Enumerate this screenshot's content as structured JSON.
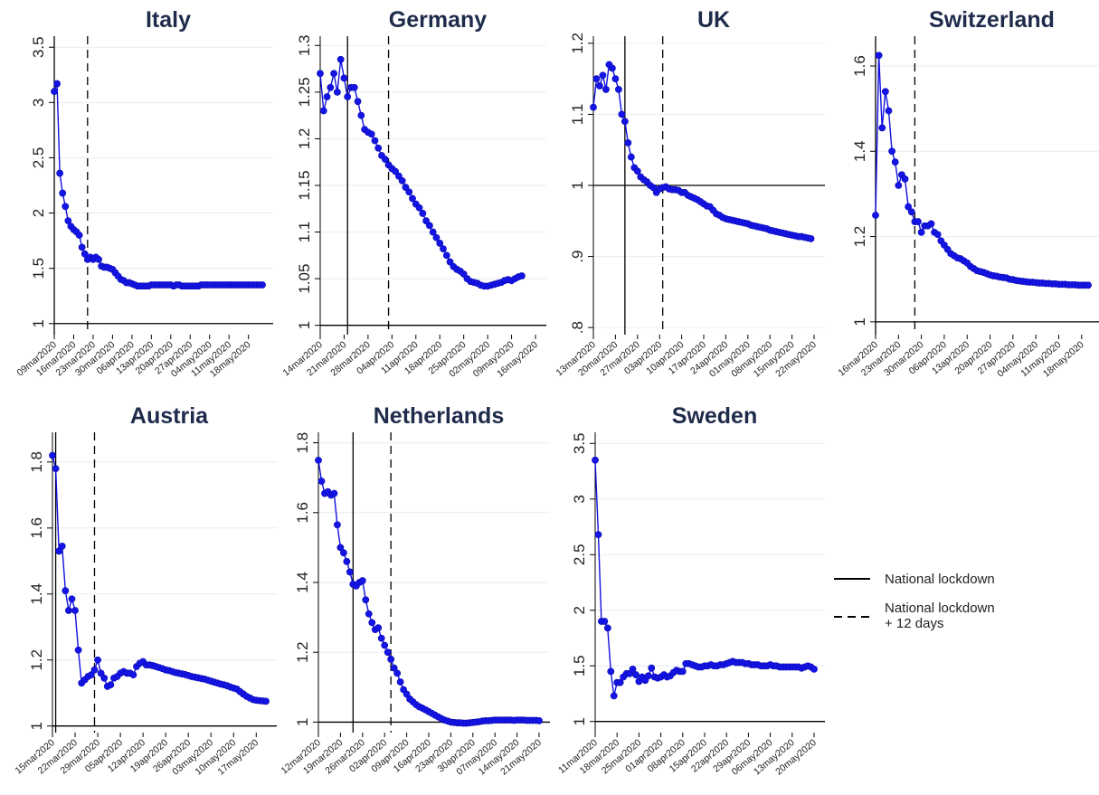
{
  "legend": {
    "lockdown_label": "National lockdown",
    "lockdown12_line1": "National lockdown",
    "lockdown12_line2": "+ 12 days"
  },
  "chart_data": [
    {
      "type": "line",
      "title": "Italy",
      "ylim": [
        0.9,
        3.6
      ],
      "yticks": [
        "1",
        "1.5",
        "2",
        "2.5",
        "3",
        "3.5"
      ],
      "xticks": [
        "09mar2020",
        "16mar2020",
        "23mar2020",
        "30mar2020",
        "06apr2020",
        "13apr2020",
        "20apr2020",
        "27apr2020",
        "04may2020",
        "11may2020",
        "18may2020"
      ],
      "x_first": "09mar2020",
      "lockdown_date": "09mar2020",
      "lockdown_plus12_date": "21mar2020",
      "reference_line": 1,
      "values": [
        3.1,
        3.17,
        2.36,
        2.18,
        2.06,
        1.93,
        1.88,
        1.85,
        1.83,
        1.8,
        1.69,
        1.63,
        1.58,
        1.6,
        1.58,
        1.6,
        1.58,
        1.52,
        1.51,
        1.51,
        1.5,
        1.49,
        1.46,
        1.43,
        1.4,
        1.39,
        1.37,
        1.37,
        1.36,
        1.35,
        1.34,
        1.34,
        1.34,
        1.34,
        1.34,
        1.35,
        1.35,
        1.35,
        1.35,
        1.35,
        1.35,
        1.35,
        1.35,
        1.34,
        1.35,
        1.35,
        1.34,
        1.34,
        1.34,
        1.34,
        1.34,
        1.34,
        1.34,
        1.35,
        1.35,
        1.35,
        1.35,
        1.35,
        1.35,
        1.35,
        1.35,
        1.35,
        1.35,
        1.35,
        1.35,
        1.35,
        1.35,
        1.35,
        1.35,
        1.35,
        1.35,
        1.35,
        1.35,
        1.35,
        1.35,
        1.35
      ]
    },
    {
      "type": "line",
      "title": "Germany",
      "ylim": [
        0.99,
        1.31
      ],
      "yticks": [
        "1",
        "1.05",
        "1.1",
        "1.15",
        "1.2",
        "1.25",
        "1.3"
      ],
      "xticks": [
        "14mar2020",
        "21mar2020",
        "28mar2020",
        "04apr2020",
        "11apr2020",
        "18apr2020",
        "25apr2020",
        "02may2020",
        "09may2020",
        "16may2020"
      ],
      "x_first": "14mar2020",
      "lockdown_date": "22mar2020",
      "lockdown_plus12_date": "03apr2020",
      "reference_line": 1,
      "values": [
        1.27,
        1.23,
        1.245,
        1.255,
        1.27,
        1.25,
        1.285,
        1.265,
        1.245,
        1.255,
        1.255,
        1.24,
        1.225,
        1.21,
        1.207,
        1.205,
        1.198,
        1.19,
        1.182,
        1.178,
        1.172,
        1.168,
        1.165,
        1.16,
        1.155,
        1.148,
        1.143,
        1.136,
        1.13,
        1.126,
        1.12,
        1.112,
        1.107,
        1.1,
        1.094,
        1.088,
        1.082,
        1.075,
        1.068,
        1.063,
        1.06,
        1.058,
        1.055,
        1.05,
        1.047,
        1.046,
        1.045,
        1.043,
        1.042,
        1.042,
        1.043,
        1.044,
        1.045,
        1.046,
        1.048,
        1.049,
        1.048,
        1.05,
        1.052,
        1.053
      ]
    },
    {
      "type": "line",
      "title": "UK",
      "ylim": [
        0.79,
        1.21
      ],
      "yticks": [
        ".8",
        ".9",
        "1",
        "1.1",
        "1.2"
      ],
      "xticks": [
        "13mar2020",
        "20mar2020",
        "27mar2020",
        "03apr2020",
        "10apr2020",
        "17apr2020",
        "24apr2020",
        "01may2020",
        "08may2020",
        "15may2020",
        "22may2020"
      ],
      "x_first": "13mar2020",
      "lockdown_date": "23mar2020",
      "lockdown_plus12_date": "04apr2020",
      "reference_line": 1,
      "values": [
        1.11,
        1.15,
        1.14,
        1.155,
        1.135,
        1.17,
        1.165,
        1.15,
        1.135,
        1.1,
        1.09,
        1.06,
        1.04,
        1.025,
        1.02,
        1.012,
        1.008,
        1.005,
        1.0,
        0.997,
        0.99,
        0.995,
        0.997,
        0.998,
        0.995,
        0.994,
        0.994,
        0.993,
        0.99,
        0.99,
        0.986,
        0.984,
        0.982,
        0.98,
        0.977,
        0.974,
        0.971,
        0.97,
        0.965,
        0.96,
        0.958,
        0.955,
        0.953,
        0.952,
        0.951,
        0.95,
        0.949,
        0.948,
        0.947,
        0.946,
        0.944,
        0.943,
        0.942,
        0.941,
        0.94,
        0.939,
        0.937,
        0.936,
        0.935,
        0.934,
        0.933,
        0.932,
        0.931,
        0.93,
        0.929,
        0.928,
        0.928,
        0.927,
        0.926,
        0.925
      ]
    },
    {
      "type": "line",
      "title": "Switzerland",
      "ylim": [
        0.97,
        1.67
      ],
      "yticks": [
        "1",
        "1.2",
        "1.4",
        "1.6"
      ],
      "xticks": [
        "16mar2020",
        "23mar2020",
        "30mar2020",
        "06apr2020",
        "13apr2020",
        "20apr2020",
        "27apr2020",
        "04may2020",
        "11may2020",
        "18may2020"
      ],
      "x_first": "16mar2020",
      "lockdown_date": "16mar2020",
      "lockdown_plus12_date": "28mar2020",
      "reference_line": 1,
      "values": [
        1.25,
        1.625,
        1.455,
        1.54,
        1.495,
        1.4,
        1.375,
        1.32,
        1.345,
        1.335,
        1.27,
        1.258,
        1.235,
        1.235,
        1.21,
        1.225,
        1.225,
        1.23,
        1.21,
        1.205,
        1.19,
        1.18,
        1.17,
        1.16,
        1.155,
        1.15,
        1.148,
        1.143,
        1.138,
        1.13,
        1.125,
        1.12,
        1.118,
        1.116,
        1.113,
        1.11,
        1.108,
        1.107,
        1.105,
        1.104,
        1.103,
        1.1,
        1.099,
        1.097,
        1.096,
        1.095,
        1.094,
        1.093,
        1.093,
        1.092,
        1.091,
        1.091,
        1.09,
        1.09,
        1.089,
        1.089,
        1.088,
        1.088,
        1.088,
        1.087,
        1.087,
        1.087,
        1.086,
        1.086,
        1.086,
        1.086
      ]
    },
    {
      "type": "line",
      "title": "Austria",
      "ylim": [
        0.98,
        1.89
      ],
      "yticks": [
        "1",
        "1.2",
        "1.4",
        "1.6",
        "1.8"
      ],
      "xticks": [
        "15mar2020",
        "22mar2020",
        "29mar2020",
        "05apr2020",
        "12apr2020",
        "19apr2020",
        "26apr2020",
        "03may2020",
        "10may2020",
        "17may2020"
      ],
      "x_first": "15mar2020",
      "lockdown_date": "16mar2020",
      "lockdown_plus12_date": "28mar2020",
      "reference_line": 1,
      "values": [
        1.82,
        1.78,
        1.53,
        1.545,
        1.41,
        1.35,
        1.385,
        1.35,
        1.23,
        1.13,
        1.14,
        1.15,
        1.155,
        1.17,
        1.2,
        1.16,
        1.145,
        1.12,
        1.125,
        1.145,
        1.15,
        1.16,
        1.165,
        1.16,
        1.16,
        1.155,
        1.18,
        1.19,
        1.195,
        1.185,
        1.185,
        1.183,
        1.18,
        1.177,
        1.174,
        1.17,
        1.168,
        1.165,
        1.162,
        1.16,
        1.158,
        1.156,
        1.153,
        1.15,
        1.148,
        1.146,
        1.144,
        1.142,
        1.139,
        1.136,
        1.133,
        1.13,
        1.127,
        1.125,
        1.122,
        1.118,
        1.115,
        1.112,
        1.104,
        1.097,
        1.09,
        1.085,
        1.08,
        1.078,
        1.077,
        1.076,
        1.075
      ]
    },
    {
      "type": "line",
      "title": "Netherlands",
      "ylim": [
        0.97,
        1.83
      ],
      "yticks": [
        "1",
        "1.2",
        "1.4",
        "1.6",
        "1.8"
      ],
      "xticks": [
        "12mar2020",
        "19mar2020",
        "26mar2020",
        "02apr2020",
        "09apr2020",
        "16apr2020",
        "23apr2020",
        "30apr2020",
        "07may2020",
        "14may2020",
        "21may2020"
      ],
      "x_first": "12mar2020",
      "lockdown_date": "23mar2020",
      "lockdown_plus12_date": "04apr2020",
      "reference_line": 1,
      "values": [
        1.75,
        1.69,
        1.655,
        1.66,
        1.65,
        1.655,
        1.565,
        1.5,
        1.485,
        1.46,
        1.43,
        1.395,
        1.39,
        1.4,
        1.405,
        1.35,
        1.31,
        1.285,
        1.265,
        1.27,
        1.24,
        1.22,
        1.2,
        1.18,
        1.155,
        1.14,
        1.115,
        1.093,
        1.08,
        1.066,
        1.058,
        1.05,
        1.044,
        1.04,
        1.035,
        1.03,
        1.025,
        1.02,
        1.015,
        1.01,
        1.006,
        1.003,
        1.0,
        0.999,
        0.998,
        0.998,
        0.997,
        0.997,
        0.998,
        0.999,
        1.0,
        1.001,
        1.003,
        1.004,
        1.004,
        1.005,
        1.006,
        1.006,
        1.006,
        1.006,
        1.006,
        1.006,
        1.005,
        1.006,
        1.006,
        1.006,
        1.005,
        1.005,
        1.005,
        1.005,
        1.004
      ]
    },
    {
      "type": "line",
      "title": "Sweden",
      "ylim": [
        0.9,
        3.6
      ],
      "yticks": [
        "1",
        "1.5",
        "2",
        "2.5",
        "3",
        "3.5"
      ],
      "xticks": [
        "11mar2020",
        "18mar2020",
        "25mar2020",
        "01apr2020",
        "08apr2020",
        "15apr2020",
        "22apr2020",
        "29apr2020",
        "06may2020",
        "13may2020",
        "20may2020"
      ],
      "x_first": "11mar2020",
      "reference_line": 1,
      "values": [
        3.35,
        2.68,
        1.9,
        1.9,
        1.84,
        1.45,
        1.23,
        1.35,
        1.35,
        1.4,
        1.43,
        1.43,
        1.47,
        1.42,
        1.36,
        1.4,
        1.37,
        1.41,
        1.48,
        1.4,
        1.39,
        1.4,
        1.42,
        1.4,
        1.41,
        1.44,
        1.46,
        1.45,
        1.45,
        1.52,
        1.52,
        1.51,
        1.5,
        1.49,
        1.49,
        1.5,
        1.5,
        1.51,
        1.5,
        1.5,
        1.51,
        1.51,
        1.52,
        1.53,
        1.54,
        1.53,
        1.53,
        1.53,
        1.52,
        1.52,
        1.51,
        1.51,
        1.51,
        1.5,
        1.5,
        1.5,
        1.51,
        1.5,
        1.5,
        1.49,
        1.49,
        1.49,
        1.49,
        1.49,
        1.49,
        1.49,
        1.48,
        1.49,
        1.5,
        1.49,
        1.47
      ]
    }
  ]
}
